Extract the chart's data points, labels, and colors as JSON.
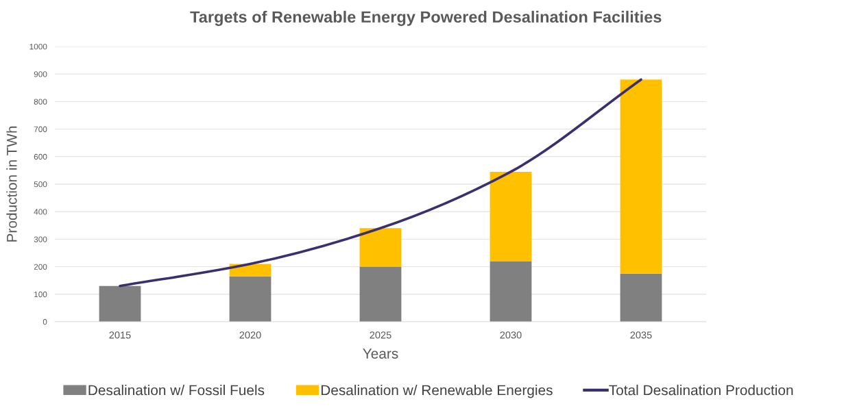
{
  "chart_data": {
    "type": "bar",
    "title": "Targets of Renewable Energy Powered Desalination Facilities",
    "xlabel": "Years",
    "ylabel": "Production in TWh",
    "categories": [
      "2015",
      "2020",
      "2025",
      "2030",
      "2035"
    ],
    "series": [
      {
        "name": "Desalination w/ Fossil Fuels",
        "color": "#808080",
        "values": [
          130,
          165,
          200,
          220,
          175
        ]
      },
      {
        "name": "Desalination w/ Renewable Energies",
        "color": "#ffc000",
        "values": [
          null,
          45,
          140,
          325,
          705
        ]
      },
      {
        "name": "Total Desalination Production",
        "type": "line",
        "color": "#3b2f6e",
        "values": [
          130,
          210,
          340,
          545,
          880
        ]
      }
    ],
    "stacked": true,
    "ylim": [
      0,
      1000
    ],
    "yticks": [
      0,
      100,
      200,
      300,
      400,
      500,
      600,
      700,
      800,
      900,
      1000
    ],
    "grid": "y",
    "legend": "bottom"
  }
}
